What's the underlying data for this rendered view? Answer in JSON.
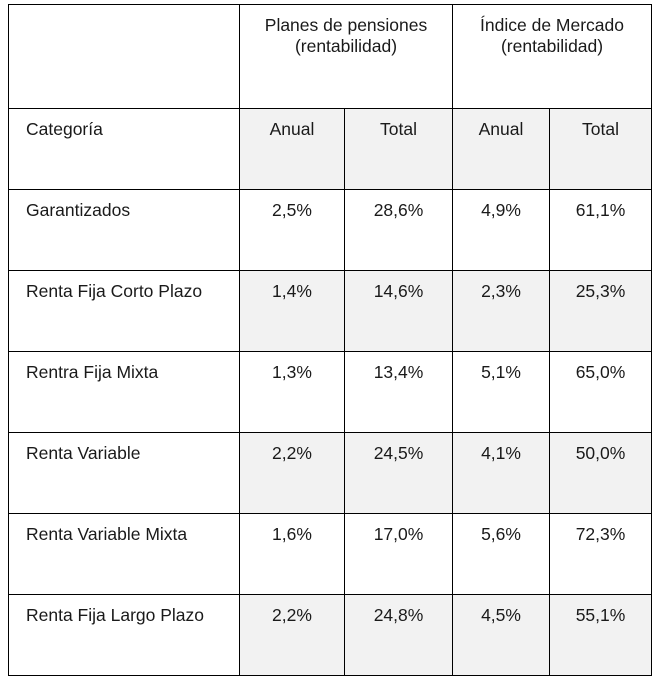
{
  "groups": [
    {
      "line1": "Planes de pensiones",
      "line2": "(rentabilidad)"
    },
    {
      "line1": "Índice de Mercado",
      "line2": "(rentabilidad)"
    }
  ],
  "subheaders": {
    "category": "Categoría",
    "cols": [
      "Anual",
      "Total",
      "Anual",
      "Total"
    ]
  },
  "rows": [
    {
      "name": "Garantizados",
      "values": [
        "2,5%",
        "28,6%",
        "4,9%",
        "61,1%"
      ]
    },
    {
      "name": "Renta Fija Corto Plazo",
      "values": [
        "1,4%",
        "14,6%",
        "2,3%",
        "25,3%"
      ]
    },
    {
      "name": "Rentra Fija Mixta",
      "values": [
        "1,3%",
        "13,4%",
        "5,1%",
        "65,0%"
      ]
    },
    {
      "name": "Renta Variable",
      "values": [
        "2,2%",
        "24,5%",
        "4,1%",
        "50,0%"
      ]
    },
    {
      "name": "Renta Variable Mixta",
      "values": [
        "1,6%",
        "17,0%",
        "5,6%",
        "72,3%"
      ]
    },
    {
      "name": "Renta Fija Largo Plazo",
      "values": [
        "2,2%",
        "24,8%",
        "4,5%",
        "55,1%"
      ]
    }
  ]
}
